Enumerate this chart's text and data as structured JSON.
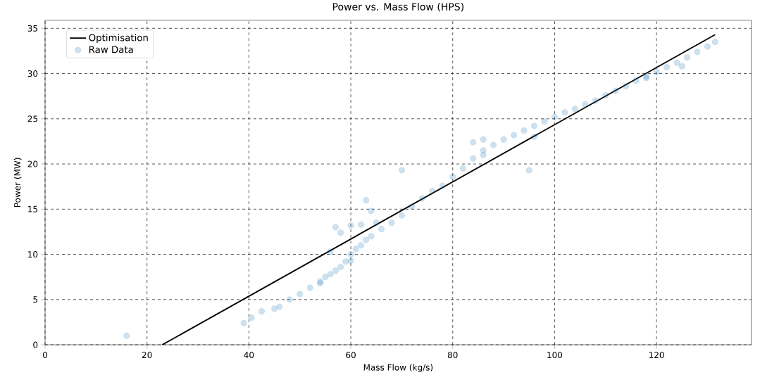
{
  "chart_data": {
    "type": "scatter",
    "title": "Power vs. Mass Flow (HPS)",
    "xlabel": "Mass Flow (kg/s)",
    "ylabel": "Power (MW)",
    "xlim": [
      0,
      138.6
    ],
    "ylim": [
      0,
      35.9
    ],
    "xticks": [
      0,
      20,
      40,
      60,
      80,
      100,
      120
    ],
    "yticks": [
      0,
      5,
      10,
      15,
      20,
      25,
      30,
      35
    ],
    "grid": true,
    "legend": "top left",
    "series": [
      {
        "name": "Optimisation",
        "type": "line",
        "color": "#000000",
        "marker": "none",
        "line_style": "solid",
        "x": [
          23,
          131.5
        ],
        "values": [
          0,
          34.3
        ]
      },
      {
        "name": "Raw Data",
        "color": "#1f77b4",
        "marker": "circle",
        "x": [
          16,
          39,
          40.5,
          42.5,
          45,
          46,
          48,
          50,
          52,
          54,
          56,
          57,
          58,
          59,
          60,
          61,
          62,
          63,
          64,
          66,
          68,
          70,
          72,
          74,
          76,
          78,
          80,
          82,
          84,
          86,
          88,
          90,
          92,
          94,
          96,
          98,
          100,
          102,
          104,
          106,
          108,
          110,
          112,
          114,
          116,
          118,
          120,
          122,
          124,
          126,
          128,
          130,
          131.5,
          57,
          58,
          60,
          62,
          63,
          64,
          65,
          70,
          95,
          84,
          86,
          60,
          56,
          54,
          55,
          86,
          118,
          125,
          96
        ],
        "values": [
          1,
          2.4,
          3,
          3.7,
          4,
          4.2,
          5,
          5.6,
          6.3,
          7,
          7.8,
          8.2,
          8.6,
          9.2,
          10,
          10.6,
          11,
          11.6,
          12,
          12.8,
          13.5,
          14.3,
          15.3,
          16.2,
          17,
          17.6,
          18.6,
          19.5,
          20.6,
          21.5,
          22.1,
          22.7,
          23.2,
          23.7,
          24.2,
          24.7,
          25.2,
          25.7,
          26.1,
          26.6,
          27,
          27.6,
          28.1,
          28.6,
          29.2,
          29.7,
          30.2,
          30.7,
          31.2,
          31.8,
          32.4,
          33,
          33.5,
          13,
          12.4,
          13.2,
          13.3,
          16,
          14.8,
          13.5,
          19.3,
          19.3,
          22.4,
          22.7,
          9.3,
          10.3,
          6.8,
          7.5,
          21,
          29.5,
          30.8,
          23
        ]
      }
    ]
  }
}
